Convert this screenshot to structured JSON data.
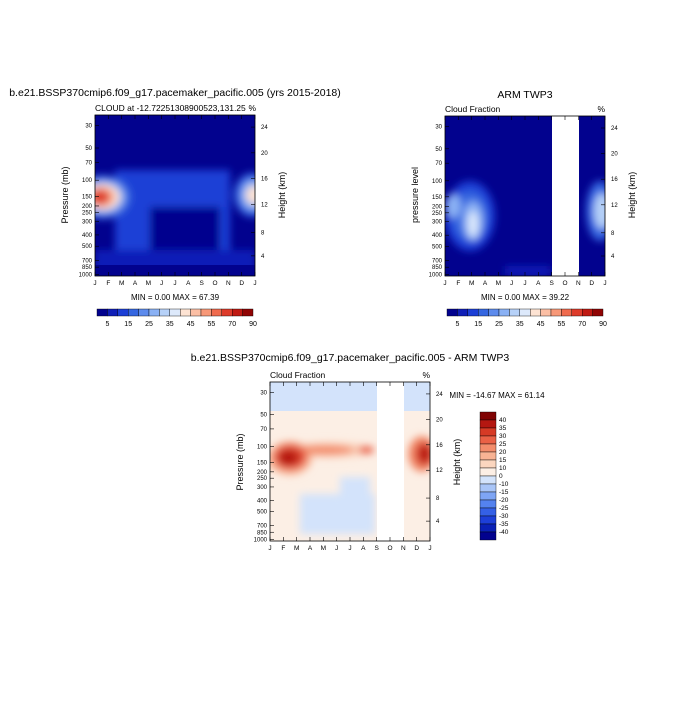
{
  "chart_data": [
    {
      "type": "heatmap",
      "title": "b.e21.BSSP370cmip6.f09_g17.pacemaker_pacific.005 (yrs 2015-2018)",
      "left_label": "CLOUD at -12.72251308900523,131.25",
      "right_label": "%",
      "xlabel": "",
      "ylabel": "Pressure (mb)",
      "ylabel_right": "Height (km)",
      "x_ticks": [
        "J",
        "F",
        "M",
        "A",
        "M",
        "J",
        "J",
        "A",
        "S",
        "O",
        "N",
        "D",
        "J"
      ],
      "y_ticks": [
        "30",
        "50",
        "70",
        "100",
        "150",
        "200",
        "250",
        "300",
        "400",
        "500",
        "700",
        "850",
        "1000"
      ],
      "y_ticks_right": [
        "24",
        "20",
        "16",
        "12",
        "8",
        "4"
      ],
      "stats": "MIN =   0.00 MAX =  67.39",
      "colorbar_labels": [
        "5",
        "15",
        "25",
        "35",
        "45",
        "55",
        "70",
        "90"
      ],
      "missing_months": []
    },
    {
      "type": "heatmap",
      "title": "ARM TWP3",
      "left_label": "Cloud Fraction",
      "right_label": "%",
      "xlabel": "",
      "ylabel": "pressure level",
      "ylabel_right": "Height (km)",
      "x_ticks": [
        "J",
        "F",
        "M",
        "A",
        "M",
        "J",
        "J",
        "A",
        "S",
        "O",
        "N",
        "D",
        "J"
      ],
      "y_ticks": [
        "30",
        "50",
        "70",
        "100",
        "150",
        "200",
        "250",
        "300",
        "400",
        "500",
        "700",
        "850",
        "1000"
      ],
      "y_ticks_right": [
        "24",
        "20",
        "16",
        "12",
        "8",
        "4"
      ],
      "stats": "MIN =   0.00 MAX =  39.22",
      "colorbar_labels": [
        "5",
        "15",
        "25",
        "35",
        "45",
        "55",
        "70",
        "90"
      ],
      "missing_months": [
        "O"
      ]
    },
    {
      "type": "heatmap",
      "title": "b.e21.BSSP370cmip6.f09_g17.pacemaker_pacific.005 - ARM TWP3",
      "left_label": "Cloud Fraction",
      "right_label": "%",
      "xlabel": "",
      "ylabel": "Pressure (mb)",
      "ylabel_right": "Height (km)",
      "x_ticks": [
        "J",
        "F",
        "M",
        "A",
        "M",
        "J",
        "J",
        "A",
        "S",
        "O",
        "N",
        "D",
        "J"
      ],
      "y_ticks": [
        "30",
        "50",
        "70",
        "100",
        "150",
        "200",
        "250",
        "300",
        "400",
        "500",
        "700",
        "850",
        "1000"
      ],
      "y_ticks_right": [
        "24",
        "20",
        "16",
        "12",
        "8",
        "4"
      ],
      "stats": "MIN = -14.67 MAX =  61.14",
      "colorbar_labels": [
        "40",
        "35",
        "30",
        "25",
        "20",
        "15",
        "10",
        "0",
        "-10",
        "-15",
        "-20",
        "-25",
        "-30",
        "-35",
        "-40"
      ],
      "missing_months": [
        "O"
      ]
    }
  ],
  "colors": {
    "seq": [
      "#02028e",
      "#0f1fb7",
      "#1c3fd6",
      "#3566e0",
      "#5d8bec",
      "#8ab1f4",
      "#b6d1f8",
      "#dde9fb",
      "#fde3d3",
      "#fbbfa5",
      "#f79878",
      "#ef6a4d",
      "#dd3b2a",
      "#bf1912",
      "#900404"
    ],
    "div": [
      "#02028e",
      "#0a20b5",
      "#1d3fd8",
      "#3460e6",
      "#5482ef",
      "#7ea5f4",
      "#a9c5f7",
      "#d3e3fb",
      "#fcefe5",
      "#fbd6bf",
      "#f8b394",
      "#f38d6c",
      "#ea6146",
      "#d63a25",
      "#b41711",
      "#800303"
    ]
  }
}
